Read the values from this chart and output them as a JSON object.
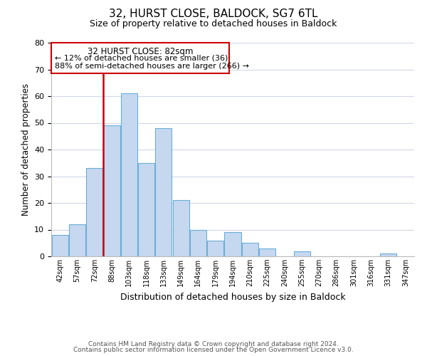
{
  "title": "32, HURST CLOSE, BALDOCK, SG7 6TL",
  "subtitle": "Size of property relative to detached houses in Baldock",
  "xlabel": "Distribution of detached houses by size in Baldock",
  "ylabel": "Number of detached properties",
  "bar_color": "#c5d8f0",
  "bar_edge_color": "#6aaed6",
  "bin_labels": [
    "42sqm",
    "57sqm",
    "72sqm",
    "88sqm",
    "103sqm",
    "118sqm",
    "133sqm",
    "149sqm",
    "164sqm",
    "179sqm",
    "194sqm",
    "210sqm",
    "225sqm",
    "240sqm",
    "255sqm",
    "270sqm",
    "286sqm",
    "301sqm",
    "316sqm",
    "331sqm",
    "347sqm"
  ],
  "bar_heights": [
    8,
    12,
    33,
    49,
    61,
    35,
    48,
    21,
    10,
    6,
    9,
    5,
    3,
    0,
    2,
    0,
    0,
    0,
    0,
    1,
    0
  ],
  "ylim": [
    0,
    80
  ],
  "yticks": [
    0,
    10,
    20,
    30,
    40,
    50,
    60,
    70,
    80
  ],
  "vline_color": "#cc0000",
  "annotation_title": "32 HURST CLOSE: 82sqm",
  "annotation_line1": "← 12% of detached houses are smaller (36)",
  "annotation_line2": "88% of semi-detached houses are larger (266) →",
  "annotation_box_color": "#ffffff",
  "annotation_box_edge": "#cc0000",
  "footer1": "Contains HM Land Registry data © Crown copyright and database right 2024.",
  "footer2": "Contains public sector information licensed under the Open Government Licence v3.0.",
  "background_color": "#ffffff",
  "grid_color": "#d0d8e8"
}
